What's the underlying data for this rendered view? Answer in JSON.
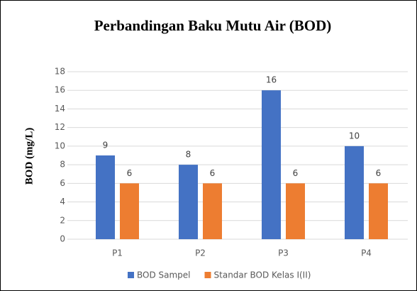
{
  "chart_data": {
    "type": "bar",
    "title": "Perbandingan Baku Mutu Air (BOD)",
    "y_label": "BOD (mg/L)",
    "categories": [
      "P1",
      "P2",
      "P3",
      "P4"
    ],
    "series": [
      {
        "name": "BOD Sampel",
        "color": "#4472c4",
        "values": [
          9,
          8,
          16,
          10
        ]
      },
      {
        "name": "Standar BOD Kelas I(II)",
        "color": "#ed7d31",
        "values": [
          6,
          6,
          6,
          6
        ]
      }
    ],
    "ylim": [
      0,
      18
    ],
    "yticks": [
      0,
      2,
      4,
      6,
      8,
      10,
      12,
      14,
      16,
      18
    ],
    "grid": true,
    "data_labels": true,
    "legend": "bottom"
  }
}
